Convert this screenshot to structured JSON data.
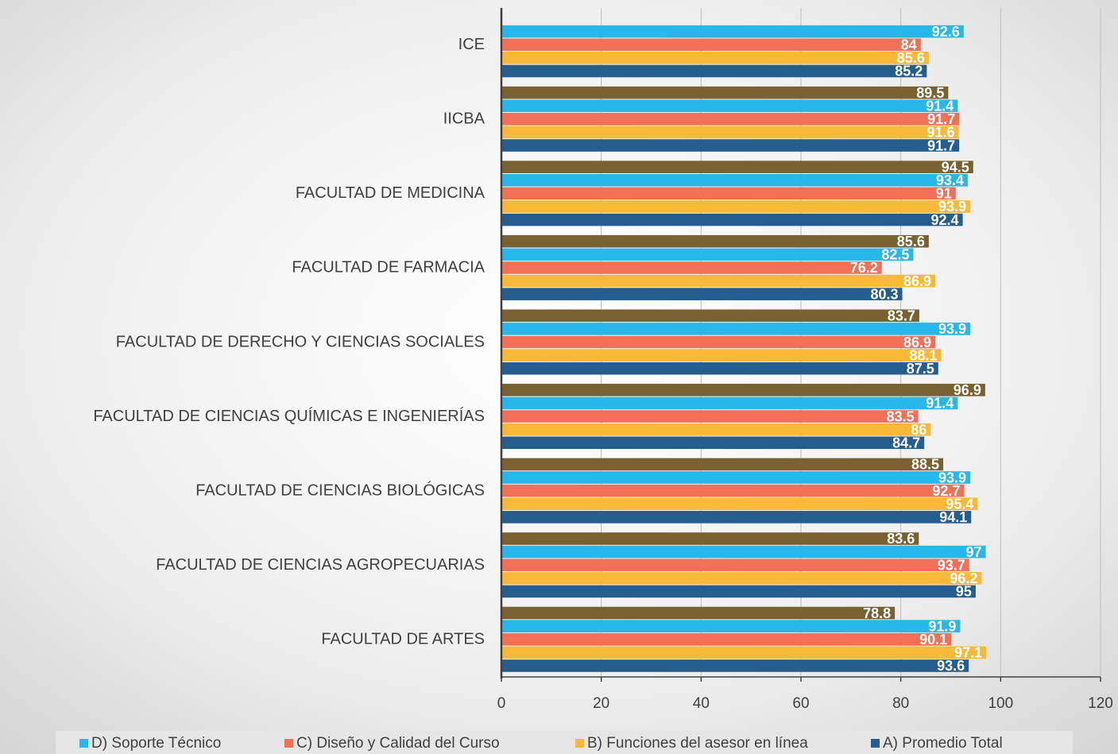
{
  "chart_data": {
    "type": "barh",
    "categories": [
      "ICE",
      "IICBA",
      "FACULTAD DE MEDICINA",
      "FACULTAD DE FARMACIA",
      "FACULTAD DE DERECHO Y CIENCIAS SOCIALES",
      "FACULTAD DE CIENCIAS QUÍMICAS E INGENIERÍAS",
      "FACULTAD DE CIENCIAS BIOLÓGICAS",
      "FACULTAD DE CIENCIAS AGROPECUARIAS",
      "FACULTAD DE ARTES"
    ],
    "series": [
      {
        "color": "#7a6132",
        "values": [
          null,
          89.5,
          94.5,
          85.6,
          83.7,
          96.9,
          88.5,
          83.6,
          78.8
        ]
      },
      {
        "name": "D)  Soporte Técnico",
        "color": "#29b6e8",
        "values": [
          92.6,
          91.4,
          93.4,
          82.5,
          93.9,
          91.4,
          93.9,
          97,
          91.9
        ]
      },
      {
        "name": "C)  Diseño y Calidad del Curso",
        "color": "#f07158",
        "values": [
          84,
          91.7,
          91,
          76.2,
          86.9,
          83.5,
          92.7,
          93.7,
          90.1
        ]
      },
      {
        "name": "B) Funciones del asesor en línea",
        "color": "#fbb93b",
        "values": [
          85.6,
          91.6,
          93.9,
          86.9,
          88.1,
          86,
          95.4,
          96.2,
          97.1
        ]
      },
      {
        "name": "A) Promedio Total",
        "color": "#265d8f",
        "values": [
          85.2,
          91.7,
          92.4,
          80.3,
          87.5,
          84.7,
          94.1,
          95,
          93.6
        ]
      }
    ],
    "xlim": [
      0,
      120
    ],
    "xticks": [
      0,
      20,
      40,
      60,
      80,
      100,
      120
    ],
    "grid": true,
    "legend": "bottom"
  }
}
